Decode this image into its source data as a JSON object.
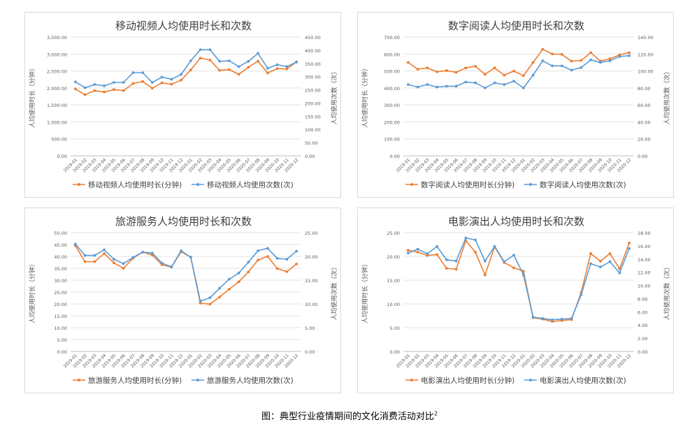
{
  "caption": {
    "text": "图：典型行业疫情期间的文化消费活动对比",
    "footnote": "2"
  },
  "months": [
    "2019-01",
    "2019-02",
    "2019-03",
    "2019-04",
    "2019-05",
    "2019-06",
    "2019-07",
    "2019-08",
    "2019-09",
    "2019-10",
    "2019-11",
    "2019-12",
    "2020-01",
    "2020-02",
    "2020-03",
    "2020-04",
    "2020-05",
    "2020-06",
    "2020-07",
    "2020-08",
    "2020-09",
    "2020-10",
    "2020-11",
    "2020-12"
  ],
  "colors": {
    "duration": "#ED7D31",
    "count": "#5B9BD5"
  },
  "chart_data": [
    {
      "type": "line",
      "title": "移动视频人均使用时长和次数",
      "ylabel": "人均使用时长（分钟）",
      "y2label": "人均使用次数（次）",
      "ylim": [
        0,
        3500
      ],
      "ystep": 500,
      "y2lim": [
        0,
        450
      ],
      "y2step": 50,
      "ytick_labels": [
        "0.00",
        "500.00",
        "1,000.00",
        "1,500.00",
        "2,000.00",
        "2,500.00",
        "3,000.00",
        "3,500.00"
      ],
      "y2tick_labels": [
        "0.00",
        "50.00",
        "100.00",
        "150.00",
        "200.00",
        "250.00",
        "300.00",
        "350.00",
        "400.00",
        "450.00"
      ],
      "legend": "bottom",
      "series": [
        {
          "name": "移动视频人均使用时长(分钟)",
          "axis": "left",
          "values": [
            1970,
            1800,
            1920,
            1880,
            1950,
            1920,
            2130,
            2190,
            1990,
            2150,
            2110,
            2230,
            2530,
            2880,
            2820,
            2520,
            2540,
            2400,
            2610,
            2790,
            2440,
            2570,
            2560,
            2770
          ]
        },
        {
          "name": "移动视频人均使用次数(次)",
          "axis": "right",
          "values": [
            280,
            258,
            270,
            265,
            278,
            278,
            315,
            315,
            278,
            298,
            290,
            308,
            360,
            402,
            402,
            358,
            360,
            338,
            358,
            388,
            332,
            345,
            338,
            355
          ]
        }
      ]
    },
    {
      "type": "line",
      "title": "数字阅读人均使用时长和次数",
      "ylabel": "人均使用时长（分钟）",
      "y2label": "人均使用次数（次）",
      "ylim": [
        0,
        700
      ],
      "ystep": 100,
      "y2lim": [
        0,
        140
      ],
      "y2step": 20,
      "ytick_labels": [
        "0.00",
        "100.00",
        "200.00",
        "300.00",
        "400.00",
        "500.00",
        "600.00",
        "700.00"
      ],
      "y2tick_labels": [
        "0.00",
        "20.00",
        "40.00",
        "60.00",
        "80.00",
        "100.00",
        "120.00",
        "140.00"
      ],
      "legend": "bottom",
      "series": [
        {
          "name": "数字阅读人均使用时长(分钟)",
          "axis": "left",
          "values": [
            550,
            510,
            518,
            495,
            502,
            492,
            518,
            528,
            480,
            518,
            475,
            500,
            472,
            550,
            628,
            600,
            598,
            558,
            562,
            608,
            558,
            572,
            595,
            608
          ]
        },
        {
          "name": "数字阅读人均使用次数(次)",
          "axis": "right",
          "values": [
            84,
            81,
            84,
            81,
            82,
            82,
            87,
            86,
            80,
            86,
            84,
            88,
            80,
            95,
            112,
            106,
            106,
            101,
            104,
            113,
            110,
            112,
            117,
            118
          ]
        }
      ]
    },
    {
      "type": "line",
      "title": "旅游服务人均使用时长和次数",
      "ylabel": "人均使用时长（分钟）",
      "y2label": "人均使用次数（次）",
      "ylim": [
        0,
        50
      ],
      "ystep": 5,
      "y2lim": [
        0,
        25
      ],
      "y2step": 5,
      "ytick_labels": [
        "0.00",
        "5.00",
        "10.00",
        "15.00",
        "20.00",
        "25.00",
        "30.00",
        "35.00",
        "40.00",
        "45.00",
        "50.00"
      ],
      "y2tick_labels": [
        "0.00",
        "5.00",
        "10.00",
        "15.00",
        "20.00",
        "25.00"
      ],
      "legend": "bottom",
      "series": [
        {
          "name": "旅游服务人均使用时长(分钟)",
          "axis": "left",
          "values": [
            44.5,
            37.8,
            37.8,
            41.2,
            37.3,
            35.0,
            39.3,
            41.8,
            40.6,
            36.5,
            35.5,
            42.0,
            39.7,
            20.3,
            19.9,
            22.9,
            26.2,
            29.3,
            33.5,
            38.5,
            40.0,
            34.9,
            33.6,
            36.8
          ]
        },
        {
          "name": "旅游服务人均使用次数(次)",
          "axis": "right",
          "values": [
            22.6,
            20.2,
            20.2,
            21.4,
            19.4,
            18.5,
            19.8,
            20.9,
            20.7,
            18.6,
            17.8,
            21.2,
            19.8,
            10.6,
            11.3,
            13.3,
            15.2,
            16.5,
            18.8,
            21.2,
            21.7,
            19.6,
            19.4,
            21.1
          ]
        }
      ]
    },
    {
      "type": "line",
      "title": "电影演出人均使用时长和次数",
      "ylabel": "人均使用时长（分钟）",
      "y2label": "人均使用次数（次）",
      "ylim": [
        0,
        25
      ],
      "ystep": 5,
      "y2lim": [
        0,
        18
      ],
      "y2step": 2,
      "ytick_labels": [
        "0.00",
        "5.00",
        "10.00",
        "15.00",
        "20.00",
        "25.00"
      ],
      "y2tick_labels": [
        "0.00",
        "2.00",
        "4.00",
        "6.00",
        "8.00",
        "10.00",
        "12.00",
        "14.00",
        "16.00",
        "18.00"
      ],
      "legend": "bottom",
      "series": [
        {
          "name": "电影演出人均使用时长(分钟)",
          "axis": "left",
          "values": [
            21.3,
            20.9,
            20.2,
            20.4,
            17.5,
            17.3,
            23.3,
            20.9,
            16.1,
            22.0,
            18.7,
            17.6,
            16.9,
            7.1,
            6.8,
            6.3,
            6.5,
            6.7,
            12.4,
            20.6,
            19.0,
            20.6,
            17.4,
            22.8
          ]
        },
        {
          "name": "电影演出人均使用次数(次)",
          "axis": "right",
          "values": [
            14.9,
            15.5,
            14.8,
            15.9,
            13.9,
            13.7,
            17.2,
            16.9,
            13.7,
            15.9,
            13.6,
            14.6,
            11.6,
            5.2,
            5.0,
            4.8,
            4.9,
            5.0,
            8.6,
            13.3,
            12.8,
            13.6,
            11.9,
            15.6
          ]
        }
      ]
    }
  ]
}
